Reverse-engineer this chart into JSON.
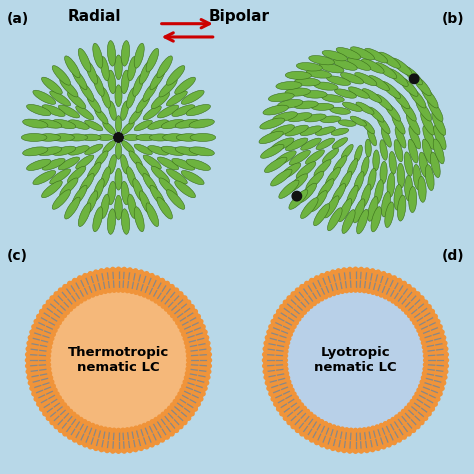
{
  "bg_color": "#b8d8e8",
  "panel_bg": "#b8d8e8",
  "title_a": "Radial",
  "title_b": "Bipolar",
  "label_a": "(a)",
  "label_b": "(b)",
  "label_c": "(c)",
  "label_d": "(d)",
  "text_c": "Thermotropic\nnematic LC",
  "text_d": "Lyotropic\nnematic LC",
  "lc_color_fill": "#6db33f",
  "lc_color_edge": "#3a6e1a",
  "orange_color": "#f0943a",
  "gray_color": "#888888",
  "inner_c_color": "#f5b87a",
  "inner_d_color": "#b8d0e8",
  "arrow_color": "#cc0000",
  "dot_color": "#111111"
}
